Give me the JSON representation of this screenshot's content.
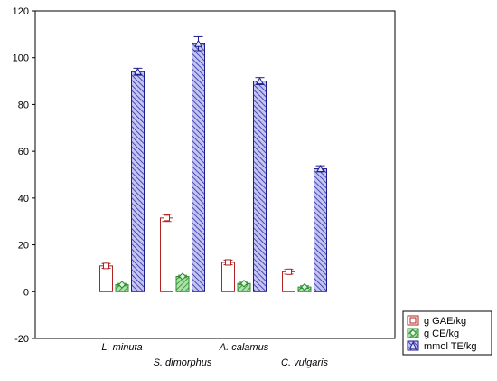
{
  "chart_data": {
    "type": "bar",
    "categories": [
      "L. minuta",
      "S. dimorphus",
      "A. calamus",
      "C. vulgaris"
    ],
    "series": [
      {
        "name": "g GAE/kg",
        "values": [
          11,
          31.5,
          12.5,
          8.5
        ],
        "errors": [
          1,
          1.5,
          1,
          1
        ],
        "color": "#b22222",
        "fill": "#ffffff",
        "marker": "square"
      },
      {
        "name": "g CE/kg",
        "values": [
          3,
          6.5,
          3.5,
          2
        ],
        "errors": [
          0.5,
          0.5,
          0.5,
          0.5
        ],
        "color": "#2e8b2e",
        "fill": "#7fd17f",
        "marker": "diamond"
      },
      {
        "name": "mmol TE/kg",
        "values": [
          94,
          106,
          90,
          52.5
        ],
        "errors": [
          1.5,
          3,
          1.5,
          1.3
        ],
        "color": "#1c1c8c",
        "fill": "#8c8cdc",
        "marker": "triangle"
      }
    ],
    "ylim": [
      -20,
      120
    ],
    "yticks": [
      -20,
      0,
      20,
      40,
      60,
      80,
      100,
      120
    ],
    "xlabel": "",
    "ylabel": "",
    "legend": "bottom-right",
    "grid": false
  }
}
